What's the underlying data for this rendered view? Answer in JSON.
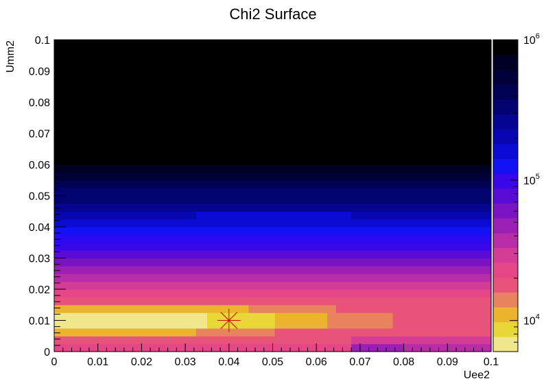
{
  "chart_data": {
    "type": "heatmap",
    "title": "Chi2 Surface",
    "xlabel": "Uee2",
    "ylabel": "Umm2",
    "xlim": [
      0,
      0.1
    ],
    "ylim": [
      0,
      0.1
    ],
    "x_ticks": [
      "0",
      "0.01",
      "0.02",
      "0.03",
      "0.04",
      "0.05",
      "0.06",
      "0.07",
      "0.08",
      "0.09",
      "0.1"
    ],
    "y_ticks": [
      "0",
      "0.01",
      "0.02",
      "0.03",
      "0.04",
      "0.05",
      "0.06",
      "0.07",
      "0.08",
      "0.09",
      "0.1"
    ],
    "z_scale": "log",
    "z_range": [
      6000,
      1000000
    ],
    "z_ticks": [
      {
        "base": "10",
        "exp": "4",
        "value": 10000
      },
      {
        "base": "10",
        "exp": "5",
        "value": 100000
      },
      {
        "base": "10",
        "exp": "6",
        "value": 1000000
      }
    ],
    "palette": [
      "#f0e68c",
      "#e9d637",
      "#eab52c",
      "#e8835e",
      "#e8537a",
      "#e54786",
      "#d43d96",
      "#b72da7",
      "#9a1fb5",
      "#7a14c2",
      "#5a0bd5",
      "#3a08e8",
      "#1212f4",
      "#0b0bd6",
      "#0707b2",
      "#050590",
      "#030370",
      "#020254",
      "#01013a",
      "#000024",
      "#000000"
    ],
    "cells": [
      {
        "x0": 0.0,
        "x1": 0.0335,
        "y0": 0.0,
        "y1": 0.0025,
        "color": "#e54786"
      },
      {
        "x0": 0.0335,
        "x1": 0.068,
        "y0": 0.0,
        "y1": 0.0025,
        "color": "#e54786"
      },
      {
        "x0": 0.068,
        "x1": 0.08,
        "y0": 0.0,
        "y1": 0.0025,
        "color": "#9a1fb5"
      },
      {
        "x0": 0.08,
        "x1": 0.1,
        "y0": 0.0,
        "y1": 0.0025,
        "color": "#b72da7"
      },
      {
        "x0": 0.0,
        "x1": 0.068,
        "y0": 0.0025,
        "y1": 0.005,
        "color": "#e8537a"
      },
      {
        "x0": 0.068,
        "x1": 0.08,
        "y0": 0.0025,
        "y1": 0.005,
        "color": "#d43d96"
      },
      {
        "x0": 0.08,
        "x1": 0.1,
        "y0": 0.0025,
        "y1": 0.005,
        "color": "#d43d96"
      },
      {
        "x0": 0.0,
        "x1": 0.0325,
        "y0": 0.005,
        "y1": 0.0075,
        "color": "#eab52c"
      },
      {
        "x0": 0.0325,
        "x1": 0.0505,
        "y0": 0.005,
        "y1": 0.0075,
        "color": "#e8835e"
      },
      {
        "x0": 0.0505,
        "x1": 0.1,
        "y0": 0.005,
        "y1": 0.0075,
        "color": "#e8537a"
      },
      {
        "x0": 0.0,
        "x1": 0.035,
        "y0": 0.0075,
        "y1": 0.0125,
        "color": "#f0e68c"
      },
      {
        "x0": 0.035,
        "x1": 0.0505,
        "y0": 0.0075,
        "y1": 0.0125,
        "color": "#e9d637"
      },
      {
        "x0": 0.0505,
        "x1": 0.0625,
        "y0": 0.0075,
        "y1": 0.0125,
        "color": "#eab52c"
      },
      {
        "x0": 0.0625,
        "x1": 0.0775,
        "y0": 0.0075,
        "y1": 0.0125,
        "color": "#e8835e"
      },
      {
        "x0": 0.0775,
        "x1": 0.1,
        "y0": 0.0075,
        "y1": 0.0125,
        "color": "#e8537a"
      },
      {
        "x0": 0.0,
        "x1": 0.0445,
        "y0": 0.0125,
        "y1": 0.015,
        "color": "#eab52c"
      },
      {
        "x0": 0.0445,
        "x1": 0.0645,
        "y0": 0.0125,
        "y1": 0.015,
        "color": "#e8835e"
      },
      {
        "x0": 0.0645,
        "x1": 0.1,
        "y0": 0.0125,
        "y1": 0.015,
        "color": "#e8537a"
      },
      {
        "x0": 0.0,
        "x1": 0.1,
        "y0": 0.015,
        "y1": 0.0175,
        "color": "#e8537a"
      },
      {
        "x0": 0.0,
        "x1": 0.1,
        "y0": 0.0175,
        "y1": 0.02,
        "color": "#e54786"
      },
      {
        "x0": 0.0,
        "x1": 0.1,
        "y0": 0.02,
        "y1": 0.0225,
        "color": "#d43d96"
      },
      {
        "x0": 0.0,
        "x1": 0.1,
        "y0": 0.0225,
        "y1": 0.025,
        "color": "#b72da7"
      },
      {
        "x0": 0.0,
        "x1": 0.1,
        "y0": 0.025,
        "y1": 0.0275,
        "color": "#9a1fb5"
      },
      {
        "x0": 0.0,
        "x1": 0.1,
        "y0": 0.0275,
        "y1": 0.03,
        "color": "#7a14c2"
      },
      {
        "x0": 0.0,
        "x1": 0.1,
        "y0": 0.03,
        "y1": 0.0325,
        "color": "#5a0bd5"
      },
      {
        "x0": 0.0,
        "x1": 0.1,
        "y0": 0.0325,
        "y1": 0.035,
        "color": "#3a08e8"
      },
      {
        "x0": 0.0,
        "x1": 0.1,
        "y0": 0.035,
        "y1": 0.0375,
        "color": "#2a0af0"
      },
      {
        "x0": 0.0,
        "x1": 0.1,
        "y0": 0.0375,
        "y1": 0.04,
        "color": "#1212f4"
      },
      {
        "x0": 0.0,
        "x1": 0.1,
        "y0": 0.04,
        "y1": 0.0425,
        "color": "#0b0bd6"
      },
      {
        "x0": 0.0,
        "x1": 0.0325,
        "y0": 0.0425,
        "y1": 0.045,
        "color": "#0707b2"
      },
      {
        "x0": 0.0325,
        "x1": 0.068,
        "y0": 0.0425,
        "y1": 0.045,
        "color": "#0b0bd6"
      },
      {
        "x0": 0.068,
        "x1": 0.1,
        "y0": 0.0425,
        "y1": 0.045,
        "color": "#0707b2"
      },
      {
        "x0": 0.0,
        "x1": 0.1,
        "y0": 0.045,
        "y1": 0.0475,
        "color": "#050590"
      },
      {
        "x0": 0.0,
        "x1": 0.1,
        "y0": 0.0475,
        "y1": 0.05,
        "color": "#030370"
      },
      {
        "x0": 0.0,
        "x1": 0.1,
        "y0": 0.05,
        "y1": 0.0525,
        "color": "#030370"
      },
      {
        "x0": 0.0,
        "x1": 0.1,
        "y0": 0.0525,
        "y1": 0.055,
        "color": "#020254"
      },
      {
        "x0": 0.0,
        "x1": 0.1,
        "y0": 0.055,
        "y1": 0.0575,
        "color": "#01013a"
      },
      {
        "x0": 0.0,
        "x1": 0.1,
        "y0": 0.0575,
        "y1": 0.06,
        "color": "#000024"
      },
      {
        "x0": 0.0,
        "x1": 0.1,
        "y0": 0.06,
        "y1": 0.1,
        "color": "#000000"
      }
    ],
    "best_fit_marker": {
      "x": 0.04,
      "y": 0.01,
      "color": "#cc0000",
      "shape": "star"
    }
  }
}
